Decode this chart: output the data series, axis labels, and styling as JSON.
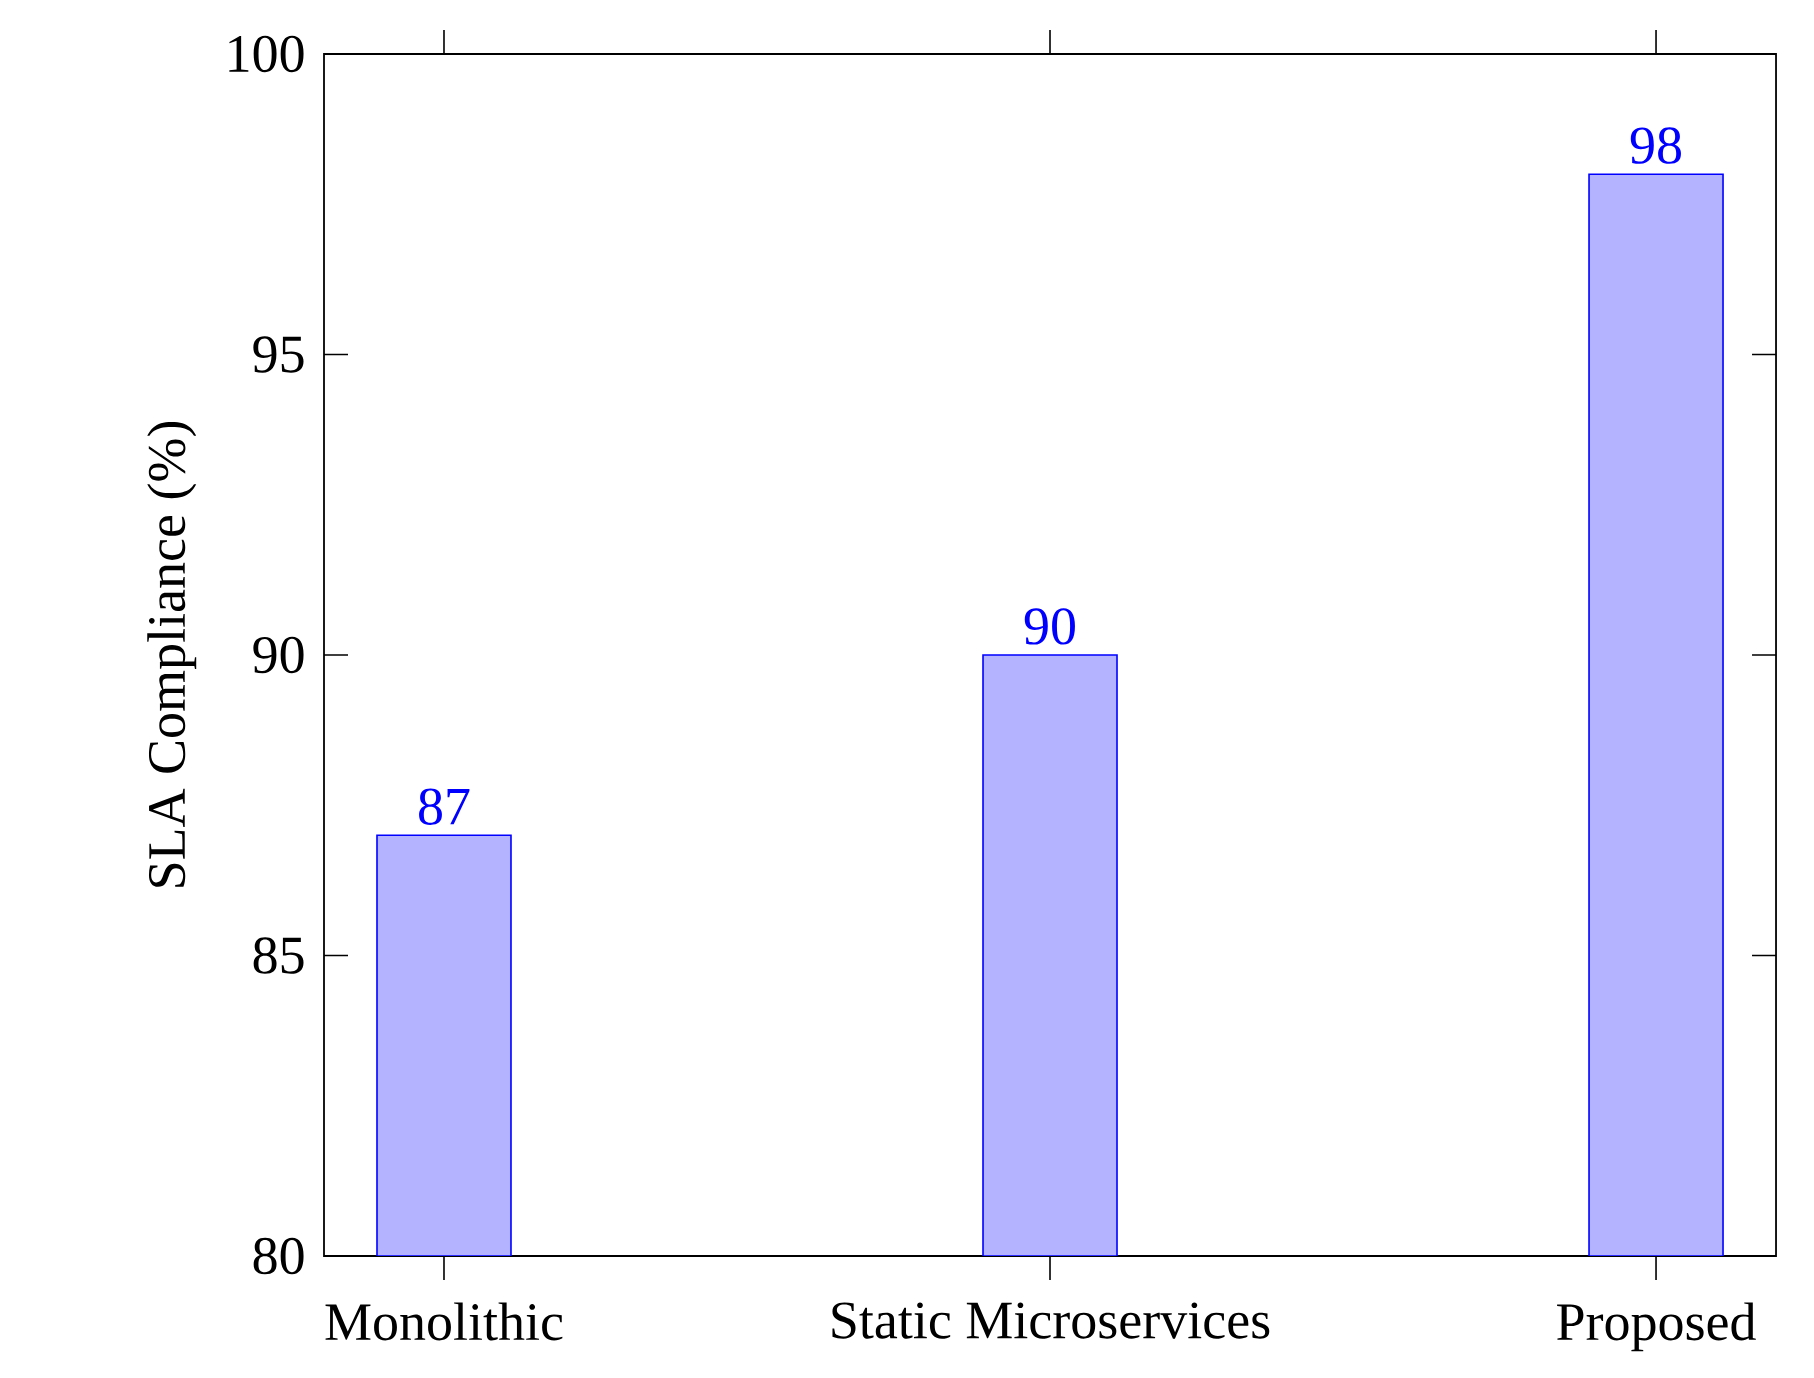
{
  "chart_data": {
    "type": "bar",
    "ylabel": "SLA Compliance (%)",
    "categories": [
      "Monolithic",
      "Static Microservices",
      "Proposed"
    ],
    "values": [
      87,
      90,
      98
    ],
    "color": "#b3b3ff",
    "ylim": [
      80,
      100
    ],
    "yticks": [
      80,
      85,
      90,
      95,
      100
    ],
    "data_labels": true
  }
}
